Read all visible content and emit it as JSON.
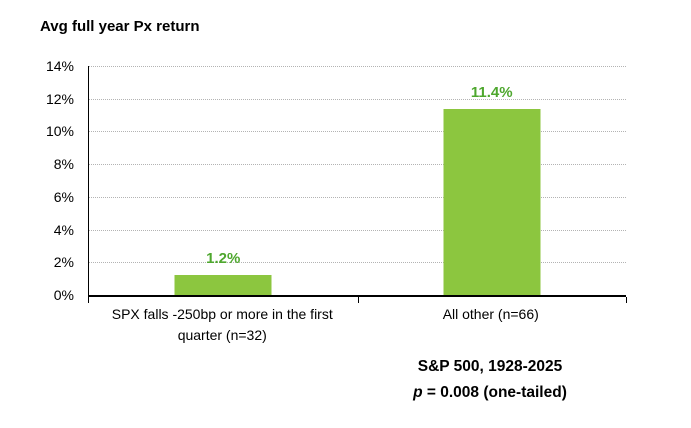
{
  "chart_data": {
    "type": "bar",
    "title": "Avg full year Px return",
    "categories": [
      "SPX falls -250bp or more in the first quarter (n=32)",
      "All other (n=66)"
    ],
    "values": [
      1.2,
      11.4
    ],
    "data_labels": [
      "1.2%",
      "11.4%"
    ],
    "xlabel": "",
    "ylabel": "",
    "ylim": [
      0,
      14
    ],
    "ytick_interval": 2,
    "ytick_labels": [
      "0%",
      "2%",
      "4%",
      "6%",
      "8%",
      "10%",
      "12%",
      "14%"
    ],
    "grid": "horizontal-dotted",
    "legend": "none",
    "bar_color": "#8CC63F",
    "data_label_color": "#4EA72E",
    "grid_color": "#b3b3b3",
    "axis_color": "#000000",
    "annotations": [
      "S&P 500, 1928-2025",
      "p = 0.008 (one-tailed)"
    ]
  },
  "footnote": {
    "line1": "S&P 500, 1928-2025",
    "p_symbol": "p",
    "p_rest": " = 0.008 (one-tailed)"
  }
}
